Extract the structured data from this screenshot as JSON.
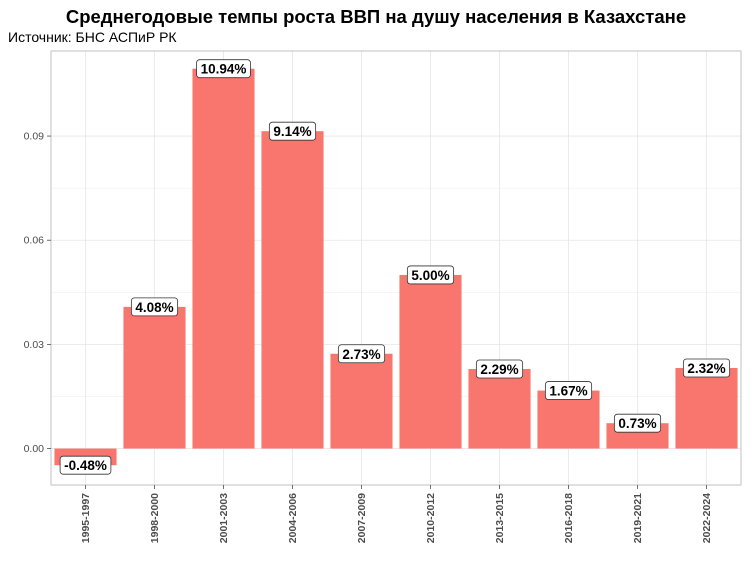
{
  "chart_data": {
    "type": "bar",
    "title": "Среднегодовые темпы роста ВВП на душу населения в Казахстане",
    "subtitle": "Источник: БНС АСПиР РК",
    "xlabel": "",
    "ylabel": "",
    "categories": [
      "1995-1997",
      "1998-2000",
      "2001-2003",
      "2004-2006",
      "2007-2009",
      "2010-2012",
      "2013-2015",
      "2016-2018",
      "2019-2021",
      "2022-2024"
    ],
    "values": [
      -0.0048,
      0.0408,
      0.1094,
      0.0914,
      0.0273,
      0.05,
      0.0229,
      0.0167,
      0.0073,
      0.0232
    ],
    "data_labels": [
      "-0.48%",
      "4.08%",
      "10.94%",
      "9.14%",
      "2.73%",
      "5.00%",
      "2.29%",
      "1.67%",
      "0.73%",
      "2.32%"
    ],
    "yticks": [
      0.0,
      0.03,
      0.06,
      0.09
    ],
    "ytick_labels": [
      "0.00",
      "0.03",
      "0.06",
      "0.09"
    ],
    "ylim": [
      -0.0105,
      0.1145
    ],
    "grid": true,
    "legend": "none",
    "colors": {
      "bar": "#F8766D",
      "grid": "#e6e6e6",
      "panel_border": "#b3b3b3"
    }
  }
}
